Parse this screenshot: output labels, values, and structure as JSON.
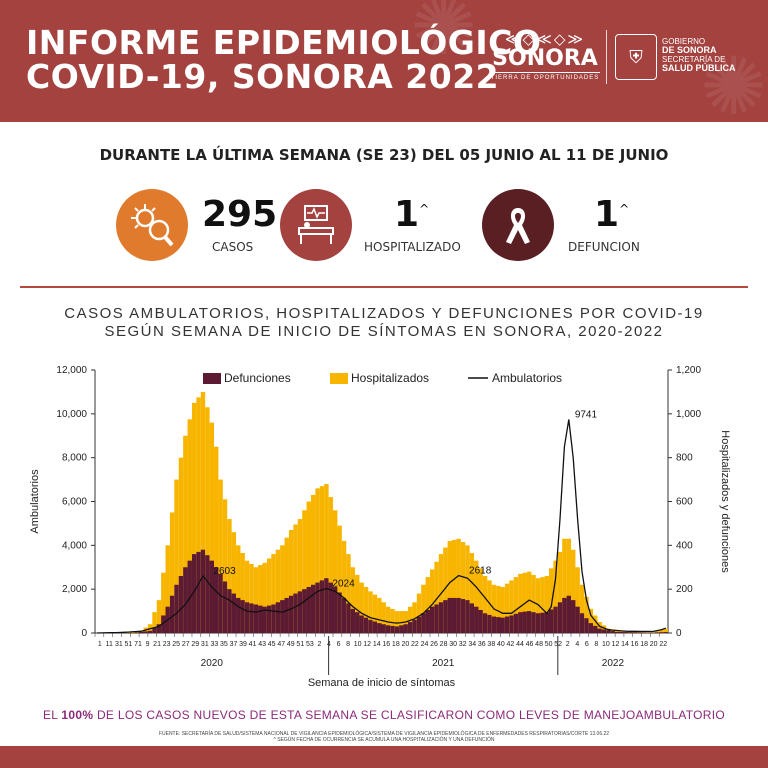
{
  "header": {
    "title_line1": "INFORME EPIDEMIOLÓGICO",
    "title_line2": "COVID-19, SONORA 2022",
    "brand_pattern": "≪◇≪◇≫",
    "brand_name": "SONORA",
    "brand_tagline": "TIERRA DE OPORTUNIDADES",
    "gov_line1": "GOBIERNO",
    "gov_line2": "DE SONORA",
    "gov_line3": "SECRETARÍA DE",
    "gov_line4": "SALUD PÚBLICA",
    "seal_icon": "seal-icon",
    "color": "#a3423f"
  },
  "period": "DURANTE LA ÚLTIMA SEMANA (SE 23) DEL 05 JUNIO AL 11 DE JUNIO",
  "stats": [
    {
      "value": "295",
      "mark": "",
      "label": "CASOS",
      "icon": "virus-magnifier-icon",
      "color": "#e07b2e"
    },
    {
      "value": "1",
      "mark": "^",
      "label": "HOSPITALIZADO",
      "icon": "hospital-bed-icon",
      "color": "#a3423f"
    },
    {
      "value": "1",
      "mark": "^",
      "label": "DEFUNCION",
      "icon": "ribbon-icon",
      "color": "#5a1f22"
    }
  ],
  "chart_title_line1": "CASOS AMBULATORIOS, HOSPITALIZADOS Y DEFUNCIONES POR COVID-19",
  "chart_title_line2": "SEGÚN SEMANA DE INICIO DE SÍNTOMAS EN SONORA, 2020-2022",
  "chart_data": {
    "type": "bar",
    "xlabel": "Semana de inicio de síntomas",
    "ylabel": "Ambulatorios",
    "y2label": "Hospitalizados y defunciones",
    "ylim": [
      0,
      12000
    ],
    "y2lim": [
      0,
      1200
    ],
    "yticks": [
      "0",
      "2,000",
      "4,000",
      "6,000",
      "8,000",
      "10,000",
      "12,000"
    ],
    "y2ticks": [
      "0",
      "200",
      "400",
      "600",
      "800",
      "1,000",
      "1,200"
    ],
    "legend": [
      "Defunciones",
      "Hospitalizados",
      "Ambulatorios"
    ],
    "legend_position": "top",
    "years": [
      {
        "label": "2020",
        "start": 0,
        "end": 53
      },
      {
        "label": "2021",
        "start": 53,
        "end": 105
      },
      {
        "label": "2022",
        "start": 105,
        "end": 130
      }
    ],
    "tick_labels": [
      "1",
      "11",
      "31",
      "51",
      "71",
      "9",
      "21",
      "23",
      "25",
      "27",
      "29",
      "31",
      "33",
      "35",
      "37",
      "39",
      "41",
      "43",
      "45",
      "47",
      "49",
      "51",
      "53",
      "2",
      "4",
      "6",
      "8",
      "10",
      "12",
      "14",
      "16",
      "18",
      "20",
      "22",
      "24",
      "26",
      "28",
      "30",
      "32",
      "34",
      "36",
      "38",
      "40",
      "42",
      "44",
      "46",
      "48",
      "50",
      "52",
      "2",
      "4",
      "6",
      "8",
      "10",
      "12",
      "14",
      "16",
      "18",
      "20",
      "22"
    ],
    "annotations": [
      {
        "label": "2603",
        "week": 25,
        "value": 2603
      },
      {
        "label": "2024",
        "week": 52,
        "value": 2024
      },
      {
        "label": "2618",
        "week": 83,
        "value": 2618
      },
      {
        "label": "9741",
        "week": 107,
        "value": 9741
      }
    ],
    "weeks": 130,
    "hosp_knots": [
      [
        0,
        0
      ],
      [
        5,
        2
      ],
      [
        10,
        10
      ],
      [
        12,
        40
      ],
      [
        14,
        150
      ],
      [
        16,
        400
      ],
      [
        18,
        700
      ],
      [
        20,
        900
      ],
      [
        22,
        1050
      ],
      [
        24,
        1100
      ],
      [
        26,
        960
      ],
      [
        27,
        850
      ],
      [
        28,
        700
      ],
      [
        30,
        520
      ],
      [
        32,
        400
      ],
      [
        34,
        330
      ],
      [
        36,
        300
      ],
      [
        38,
        320
      ],
      [
        40,
        360
      ],
      [
        42,
        400
      ],
      [
        44,
        470
      ],
      [
        46,
        520
      ],
      [
        48,
        600
      ],
      [
        50,
        660
      ],
      [
        52,
        680
      ],
      [
        54,
        560
      ],
      [
        56,
        420
      ],
      [
        58,
        300
      ],
      [
        60,
        230
      ],
      [
        62,
        190
      ],
      [
        64,
        160
      ],
      [
        66,
        120
      ],
      [
        68,
        100
      ],
      [
        70,
        100
      ],
      [
        72,
        140
      ],
      [
        74,
        220
      ],
      [
        76,
        290
      ],
      [
        78,
        360
      ],
      [
        80,
        420
      ],
      [
        82,
        430
      ],
      [
        84,
        400
      ],
      [
        86,
        330
      ],
      [
        88,
        260
      ],
      [
        90,
        220
      ],
      [
        92,
        210
      ],
      [
        94,
        240
      ],
      [
        96,
        270
      ],
      [
        98,
        280
      ],
      [
        100,
        250
      ],
      [
        102,
        260
      ],
      [
        104,
        330
      ],
      [
        105,
        370
      ],
      [
        106,
        430
      ],
      [
        107,
        430
      ],
      [
        108,
        380
      ],
      [
        109,
        300
      ],
      [
        110,
        220
      ],
      [
        112,
        110
      ],
      [
        114,
        50
      ],
      [
        116,
        20
      ],
      [
        120,
        5
      ],
      [
        126,
        3
      ],
      [
        130,
        25
      ]
    ],
    "def_knots": [
      [
        0,
        0
      ],
      [
        8,
        0
      ],
      [
        12,
        10
      ],
      [
        14,
        40
      ],
      [
        16,
        120
      ],
      [
        18,
        220
      ],
      [
        20,
        300
      ],
      [
        22,
        360
      ],
      [
        24,
        380
      ],
      [
        26,
        330
      ],
      [
        28,
        270
      ],
      [
        30,
        200
      ],
      [
        32,
        160
      ],
      [
        34,
        140
      ],
      [
        36,
        130
      ],
      [
        38,
        120
      ],
      [
        40,
        130
      ],
      [
        42,
        150
      ],
      [
        44,
        170
      ],
      [
        46,
        190
      ],
      [
        48,
        210
      ],
      [
        50,
        230
      ],
      [
        52,
        250
      ],
      [
        54,
        210
      ],
      [
        56,
        160
      ],
      [
        58,
        110
      ],
      [
        60,
        80
      ],
      [
        62,
        60
      ],
      [
        64,
        45
      ],
      [
        66,
        35
      ],
      [
        68,
        30
      ],
      [
        70,
        40
      ],
      [
        72,
        60
      ],
      [
        74,
        90
      ],
      [
        76,
        120
      ],
      [
        78,
        140
      ],
      [
        80,
        160
      ],
      [
        82,
        160
      ],
      [
        84,
        150
      ],
      [
        86,
        120
      ],
      [
        88,
        90
      ],
      [
        90,
        75
      ],
      [
        92,
        70
      ],
      [
        94,
        80
      ],
      [
        96,
        95
      ],
      [
        98,
        100
      ],
      [
        100,
        90
      ],
      [
        102,
        95
      ],
      [
        104,
        120
      ],
      [
        106,
        160
      ],
      [
        107,
        170
      ],
      [
        108,
        150
      ],
      [
        110,
        90
      ],
      [
        112,
        45
      ],
      [
        114,
        20
      ],
      [
        118,
        5
      ],
      [
        126,
        2
      ],
      [
        130,
        5
      ]
    ],
    "amb_knots": [
      [
        0,
        0
      ],
      [
        6,
        30
      ],
      [
        10,
        80
      ],
      [
        14,
        300
      ],
      [
        16,
        600
      ],
      [
        18,
        900
      ],
      [
        20,
        1300
      ],
      [
        22,
        1900
      ],
      [
        24,
        2603
      ],
      [
        26,
        2100
      ],
      [
        28,
        1700
      ],
      [
        30,
        1500
      ],
      [
        32,
        1200
      ],
      [
        34,
        1000
      ],
      [
        36,
        950
      ],
      [
        38,
        1050
      ],
      [
        40,
        1000
      ],
      [
        42,
        950
      ],
      [
        44,
        1100
      ],
      [
        46,
        1300
      ],
      [
        48,
        1600
      ],
      [
        50,
        1900
      ],
      [
        52,
        2024
      ],
      [
        54,
        1900
      ],
      [
        56,
        1600
      ],
      [
        58,
        1200
      ],
      [
        60,
        900
      ],
      [
        62,
        700
      ],
      [
        64,
        600
      ],
      [
        66,
        500
      ],
      [
        68,
        450
      ],
      [
        70,
        500
      ],
      [
        72,
        650
      ],
      [
        74,
        900
      ],
      [
        76,
        1300
      ],
      [
        78,
        1800
      ],
      [
        80,
        2300
      ],
      [
        82,
        2618
      ],
      [
        84,
        2500
      ],
      [
        86,
        2100
      ],
      [
        88,
        1600
      ],
      [
        90,
        1100
      ],
      [
        92,
        900
      ],
      [
        94,
        900
      ],
      [
        96,
        1200
      ],
      [
        98,
        1500
      ],
      [
        100,
        1300
      ],
      [
        102,
        900
      ],
      [
        103,
        1200
      ],
      [
        104,
        2500
      ],
      [
        105,
        5200
      ],
      [
        106,
        8500
      ],
      [
        107,
        9741
      ],
      [
        108,
        8000
      ],
      [
        109,
        5200
      ],
      [
        110,
        2800
      ],
      [
        111,
        1500
      ],
      [
        112,
        800
      ],
      [
        114,
        300
      ],
      [
        116,
        150
      ],
      [
        120,
        80
      ],
      [
        126,
        70
      ],
      [
        128,
        150
      ],
      [
        130,
        300
      ]
    ]
  },
  "footnote_prefix": "EL ",
  "footnote_highlight": "100%",
  "footnote_rest": " DE LOS CASOS NUEVOS DE ESTA SEMANA SE CLASIFICARON COMO LEVES DE MANEJOAMBULATORIO",
  "source_line1": "FUENTE: SECRETARÍA DE SALUD/SISTEMA NACIONAL DE VIGILANCIA EPIDEMIOLÓGICA/SISTEMA DE VIGILANCIA EPIDEMIOLÓGICA DE ENFERMEDADES RESPIRATORIAS/CORTE 13.06.22",
  "source_line2": "^ SEGÚN FECHA DE OCURRENCIA SE ACUMULA UNA HOSPITALIZACIÓN Y UNA DEFUNCIÓN",
  "colors": {
    "hospitalizados": "#f7b500",
    "defunciones": "#5c1a33",
    "ambulatorios": "#111111",
    "accent": "#8b2a7a"
  }
}
